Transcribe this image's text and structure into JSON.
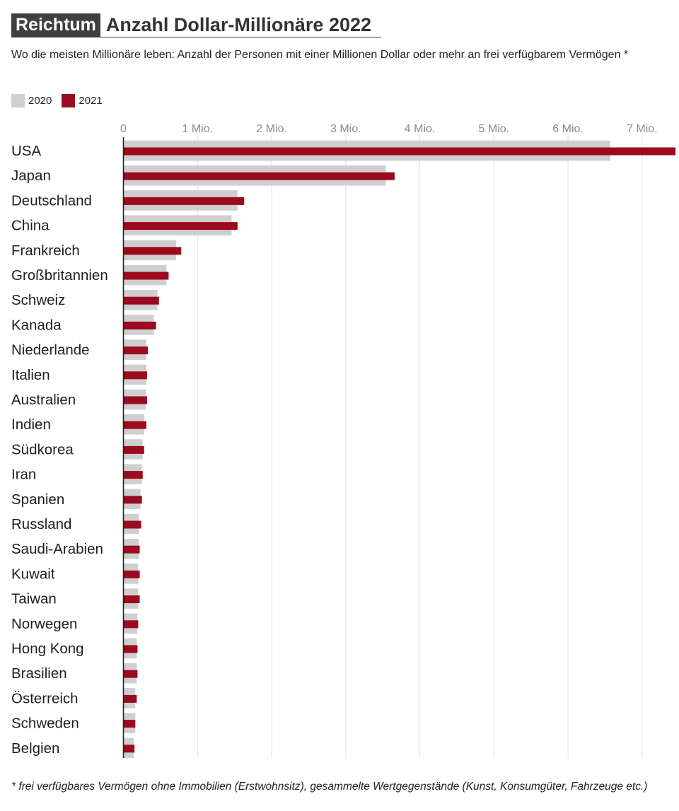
{
  "header": {
    "kicker": "Reichtum",
    "title": "Anzahl Dollar-Millionäre 2022"
  },
  "subtitle": "Wo die meisten Millionäre leben: Anzahl der Personen mit einer Millionen Dollar oder mehr an frei verfügbarem Vermögen *",
  "footnote": "* frei verfügbares Vermögen ohne Immobilien (Erstwohnsitz), gesammelte Wertgegenstände (Kunst, Konsumgüter, Fahrzeuge etc.)",
  "colors": {
    "series_2020": "#cfcfcf",
    "series_2021": "#9b0a1f",
    "gridline": "#e3e3e3",
    "axis": "#222222",
    "tick_text": "#8a8a8a"
  },
  "chart_data": {
    "type": "bar",
    "orientation": "horizontal",
    "xlim": [
      0,
      7450000
    ],
    "grid": true,
    "legend_position": "top-left",
    "xticks": [
      {
        "value": 0,
        "label": "0"
      },
      {
        "value": 1000000,
        "label": "1 Mio."
      },
      {
        "value": 2000000,
        "label": "2 Mio."
      },
      {
        "value": 3000000,
        "label": "3 Mio."
      },
      {
        "value": 4000000,
        "label": "4 Mio."
      },
      {
        "value": 5000000,
        "label": "5 Mio."
      },
      {
        "value": 6000000,
        "label": "6 Mio."
      },
      {
        "value": 7000000,
        "label": "7 Mio."
      }
    ],
    "categories": [
      "USA",
      "Japan",
      "Deutschland",
      "China",
      "Frankreich",
      "Großbritannien",
      "Schweiz",
      "Kanada",
      "Niederlande",
      "Italien",
      "Australien",
      "Indien",
      "Südkorea",
      "Iran",
      "Spanien",
      "Russland",
      "Saudi-Arabien",
      "Kuwait",
      "Taiwan",
      "Norwegen",
      "Hong Kong",
      "Brasilien",
      "Österreich",
      "Schweden",
      "Belgien"
    ],
    "series": [
      {
        "name": "2020",
        "values": [
          6570000,
          3540000,
          1540000,
          1460000,
          710000,
          580000,
          460000,
          410000,
          310000,
          310000,
          300000,
          280000,
          260000,
          250000,
          230000,
          210000,
          210000,
          200000,
          200000,
          190000,
          180000,
          180000,
          160000,
          160000,
          140000
        ]
      },
      {
        "name": "2021",
        "values": [
          7450000,
          3660000,
          1630000,
          1540000,
          780000,
          610000,
          480000,
          440000,
          330000,
          320000,
          320000,
          310000,
          280000,
          260000,
          250000,
          240000,
          220000,
          220000,
          220000,
          200000,
          190000,
          190000,
          180000,
          160000,
          150000
        ]
      }
    ]
  }
}
